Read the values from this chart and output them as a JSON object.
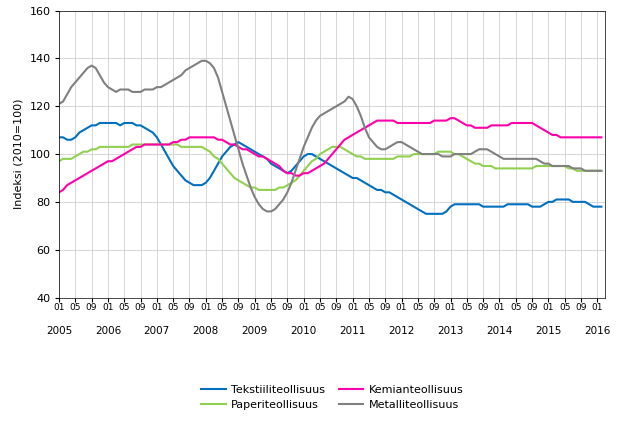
{
  "title": "",
  "ylabel": "Indeksi (2010=100)",
  "ylim": [
    40,
    160
  ],
  "yticks": [
    40,
    60,
    80,
    100,
    120,
    140,
    160
  ],
  "colors": {
    "Tekstiiliteollisuus": "#0070C0",
    "Paperiteollisuus": "#92D050",
    "Kemianteollisuus": "#FF00AA",
    "Metalliteollisuus": "#808080"
  },
  "background_color": "#FFFFFF",
  "grid_color": "#C8C8C8",
  "line_width": 1.5,
  "series": {
    "Tekstiiliteollisuus": [
      107,
      107,
      106,
      106,
      107,
      109,
      110,
      111,
      112,
      112,
      113,
      113,
      113,
      113,
      113,
      112,
      113,
      113,
      113,
      112,
      112,
      111,
      110,
      109,
      107,
      104,
      101,
      98,
      95,
      93,
      91,
      89,
      88,
      87,
      87,
      87,
      88,
      90,
      93,
      96,
      99,
      101,
      103,
      104,
      105,
      104,
      103,
      102,
      101,
      100,
      99,
      98,
      96,
      95,
      94,
      93,
      92,
      93,
      95,
      97,
      99,
      100,
      100,
      99,
      98,
      97,
      96,
      95,
      94,
      93,
      92,
      91,
      90,
      90,
      89,
      88,
      87,
      86,
      85,
      85,
      84,
      84,
      83,
      82,
      81,
      80,
      79,
      78,
      77,
      76,
      75,
      75,
      75,
      75,
      75,
      76,
      78,
      79,
      79,
      79,
      79,
      79,
      79,
      79,
      78,
      78,
      78,
      78,
      78,
      78,
      79,
      79,
      79,
      79,
      79,
      79,
      78,
      78,
      78,
      79,
      80,
      80,
      81,
      81,
      81,
      81,
      80,
      80,
      80,
      80,
      79,
      78,
      78,
      78
    ],
    "Paperiteollisuus": [
      97,
      98,
      98,
      98,
      99,
      100,
      101,
      101,
      102,
      102,
      103,
      103,
      103,
      103,
      103,
      103,
      103,
      103,
      104,
      104,
      104,
      104,
      104,
      104,
      104,
      104,
      104,
      104,
      104,
      104,
      103,
      103,
      103,
      103,
      103,
      103,
      102,
      101,
      99,
      98,
      96,
      94,
      92,
      90,
      89,
      88,
      87,
      86,
      86,
      85,
      85,
      85,
      85,
      85,
      86,
      86,
      87,
      88,
      89,
      91,
      93,
      95,
      97,
      98,
      100,
      101,
      102,
      103,
      103,
      103,
      102,
      101,
      100,
      99,
      99,
      98,
      98,
      98,
      98,
      98,
      98,
      98,
      98,
      99,
      99,
      99,
      99,
      100,
      100,
      100,
      100,
      100,
      100,
      101,
      101,
      101,
      101,
      100,
      100,
      99,
      98,
      97,
      96,
      96,
      95,
      95,
      95,
      94,
      94,
      94,
      94,
      94,
      94,
      94,
      94,
      94,
      94,
      95,
      95,
      95,
      95,
      95,
      95,
      95,
      95,
      94,
      94,
      93,
      93,
      93,
      93,
      93,
      93,
      93
    ],
    "Kemianteollisuus": [
      84,
      85,
      87,
      88,
      89,
      90,
      91,
      92,
      93,
      94,
      95,
      96,
      97,
      97,
      98,
      99,
      100,
      101,
      102,
      103,
      103,
      104,
      104,
      104,
      104,
      104,
      104,
      104,
      105,
      105,
      106,
      106,
      107,
      107,
      107,
      107,
      107,
      107,
      107,
      106,
      106,
      105,
      104,
      104,
      103,
      102,
      102,
      101,
      100,
      99,
      99,
      98,
      97,
      96,
      95,
      93,
      92,
      92,
      91,
      91,
      92,
      92,
      93,
      94,
      95,
      96,
      98,
      100,
      102,
      104,
      106,
      107,
      108,
      109,
      110,
      111,
      112,
      113,
      114,
      114,
      114,
      114,
      114,
      113,
      113,
      113,
      113,
      113,
      113,
      113,
      113,
      113,
      114,
      114,
      114,
      114,
      115,
      115,
      114,
      113,
      112,
      112,
      111,
      111,
      111,
      111,
      112,
      112,
      112,
      112,
      112,
      113,
      113,
      113,
      113,
      113,
      113,
      112,
      111,
      110,
      109,
      108,
      108,
      107,
      107,
      107,
      107,
      107,
      107,
      107,
      107,
      107,
      107,
      107
    ],
    "Metalliteollisuus": [
      121,
      122,
      125,
      128,
      130,
      132,
      134,
      136,
      137,
      136,
      133,
      130,
      128,
      127,
      126,
      127,
      127,
      127,
      126,
      126,
      126,
      127,
      127,
      127,
      128,
      128,
      129,
      130,
      131,
      132,
      133,
      135,
      136,
      137,
      138,
      139,
      139,
      138,
      136,
      132,
      126,
      120,
      114,
      108,
      102,
      96,
      91,
      86,
      82,
      79,
      77,
      76,
      76,
      77,
      79,
      81,
      84,
      88,
      93,
      98,
      103,
      107,
      111,
      114,
      116,
      117,
      118,
      119,
      120,
      121,
      122,
      124,
      123,
      120,
      116,
      111,
      107,
      105,
      103,
      102,
      102,
      103,
      104,
      105,
      105,
      104,
      103,
      102,
      101,
      100,
      100,
      100,
      100,
      100,
      99,
      99,
      99,
      100,
      100,
      100,
      100,
      100,
      101,
      102,
      102,
      102,
      101,
      100,
      99,
      98,
      98,
      98,
      98,
      98,
      98,
      98,
      98,
      98,
      97,
      96,
      96,
      95,
      95,
      95,
      95,
      95,
      94,
      94,
      94,
      93,
      93,
      93,
      93,
      93
    ]
  },
  "n_points": 134,
  "start_year": 2005,
  "start_month": 1,
  "legend_order": [
    "Tekstiiliteollisuus",
    "Paperiteollisuus",
    "Kemianteollisuus",
    "Metalliteollisuus"
  ]
}
